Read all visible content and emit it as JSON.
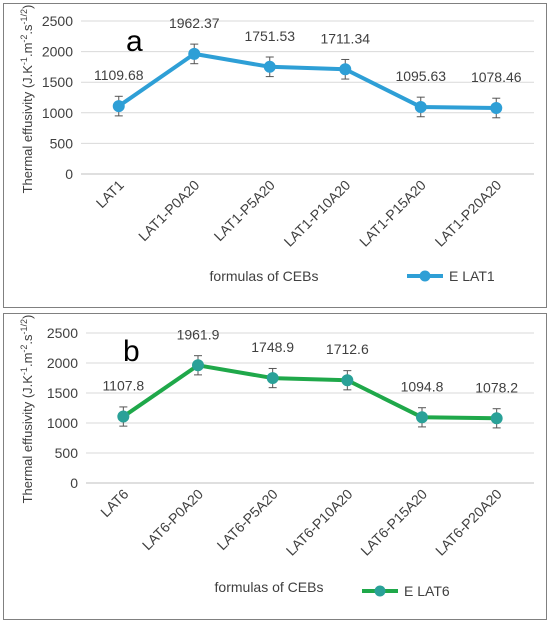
{
  "chart_data": [
    {
      "type": "line",
      "panel_letter": "a",
      "categories": [
        "LAT1",
        "LAT1-P0A20",
        "LAT1-P5A20",
        "LAT1-P10A20",
        "LAT1-P15A20",
        "LAT1-P20A20"
      ],
      "series": [
        {
          "name": "E LAT1",
          "values": [
            1109.68,
            1962.37,
            1751.53,
            1711.34,
            1095.63,
            1078.46
          ],
          "data_labels": [
            "1109.68",
            "1962.37",
            "1751.53",
            "1711.34",
            "1095.63",
            "1078.46"
          ],
          "error": [
            160,
            160,
            160,
            160,
            160,
            160
          ],
          "color": "#2e9fd6"
        }
      ],
      "xlabel": "formulas of CEBs",
      "ylabel": "Thermal effusivity (J.K-1.m-2.s-1/2)",
      "ylabel_parts": [
        "Thermal effusivity (J.K",
        "-1",
        ".m",
        "-2",
        ".s",
        "-1/2",
        ")"
      ],
      "ylim": [
        0,
        2500
      ],
      "yticks": [
        "0",
        "500",
        "1000",
        "1500",
        "2000",
        "2500"
      ],
      "grid": true,
      "legend_position": "bottom-right"
    },
    {
      "type": "line",
      "panel_letter": "b",
      "categories": [
        "LAT6",
        "LAT6-P0A20",
        "LAT6-P5A20",
        "LAT6-P10A20",
        "LAT6-P15A20",
        "LAT6-P20A20"
      ],
      "series": [
        {
          "name": "E LAT6",
          "values": [
            1107.8,
            1961.9,
            1748.9,
            1712.6,
            1094.8,
            1078.2
          ],
          "data_labels": [
            "1107.8",
            "1961.9",
            "1748.9",
            "1712.6",
            "1094.8",
            "1078.2"
          ],
          "error": [
            160,
            160,
            160,
            160,
            160,
            160
          ],
          "color": "#1fa84a",
          "marker_color": "#2aa198"
        }
      ],
      "xlabel": "formulas of CEBs",
      "ylabel": "Thermal effusivity (J.K-1.m-2.s-1/2)",
      "ylabel_parts": [
        "Thermal effusivity (J.K",
        "-1",
        ".m",
        "-2",
        ".s",
        "-1/2",
        ")"
      ],
      "ylim": [
        0,
        2500
      ],
      "yticks": [
        "0",
        "500",
        "1000",
        "1500",
        "2000",
        "2500"
      ],
      "grid": true,
      "legend_position": "bottom-right"
    }
  ]
}
